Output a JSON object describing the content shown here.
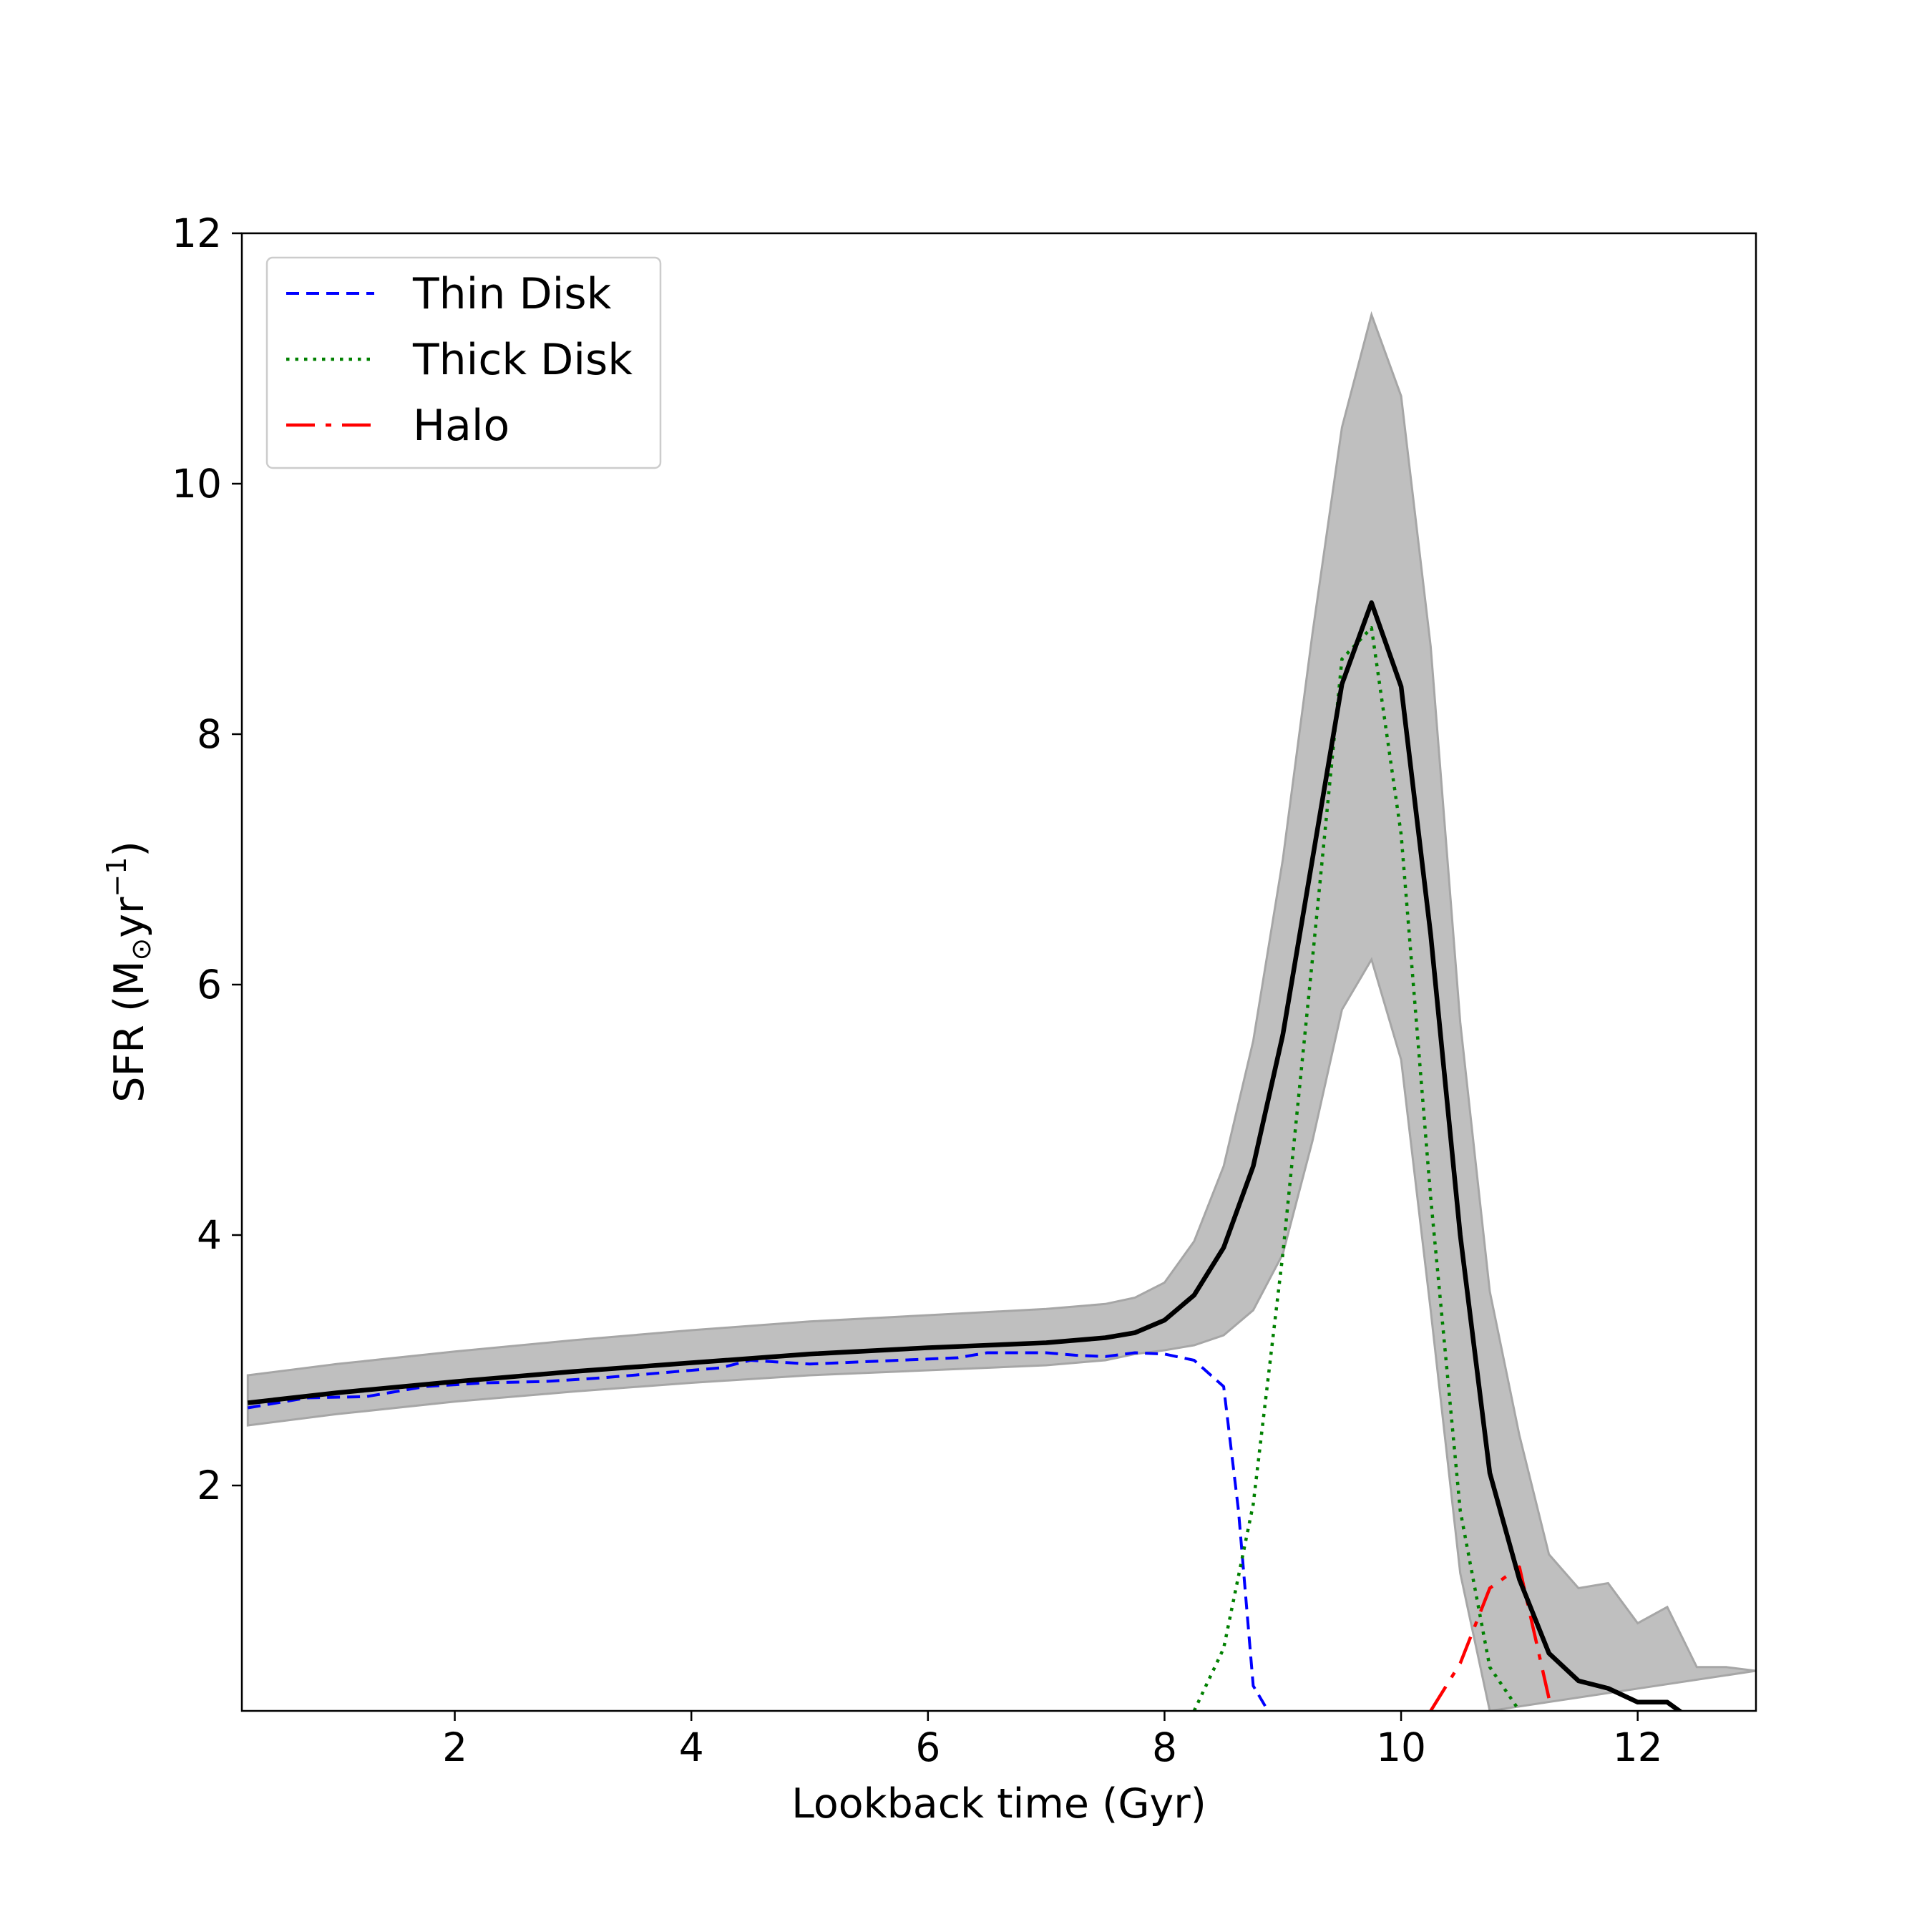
{
  "chart_data": {
    "type": "line",
    "title": "",
    "xlabel": "Lookback time (Gyr)",
    "ylabel": "SFR (M⊙yr⁻¹)",
    "ylabel_parts": {
      "main": "SFR (M",
      "sub": "⊙",
      "mid": "yr",
      "sup": "−1",
      "end": ")"
    },
    "xlim": [
      0.2,
      13.0
    ],
    "ylim": [
      0.2,
      12.0
    ],
    "xticks": [
      2,
      4,
      6,
      8,
      10,
      12
    ],
    "yticks": [
      2,
      4,
      6,
      8,
      10,
      12
    ],
    "grid": false,
    "legend_position": "top-left",
    "band": {
      "color": "#bfbfbf",
      "edge_color": "#a6a6a6",
      "upper": [
        [
          0.25,
          2.88
        ],
        [
          1.0,
          2.97
        ],
        [
          2.0,
          3.07
        ],
        [
          3.0,
          3.16
        ],
        [
          4.0,
          3.24
        ],
        [
          5.0,
          3.31
        ],
        [
          6.0,
          3.36
        ],
        [
          7.0,
          3.41
        ],
        [
          7.5,
          3.45
        ],
        [
          7.75,
          3.5
        ],
        [
          8.0,
          3.62
        ],
        [
          8.25,
          3.95
        ],
        [
          8.5,
          4.55
        ],
        [
          8.75,
          5.55
        ],
        [
          9.0,
          7.0
        ],
        [
          9.25,
          8.8
        ],
        [
          9.5,
          10.45
        ],
        [
          9.75,
          11.35
        ],
        [
          10.0,
          10.7
        ],
        [
          10.25,
          8.7
        ],
        [
          10.5,
          5.7
        ],
        [
          10.75,
          3.55
        ],
        [
          11.0,
          2.4
        ],
        [
          11.25,
          1.45
        ],
        [
          11.5,
          1.18
        ],
        [
          11.75,
          1.22
        ],
        [
          12.0,
          0.9
        ],
        [
          12.25,
          1.03
        ],
        [
          12.5,
          0.55
        ],
        [
          12.75,
          0.55
        ],
        [
          13.0,
          0.52
        ]
      ],
      "lower": [
        [
          0.25,
          2.48
        ],
        [
          1.0,
          2.57
        ],
        [
          2.0,
          2.67
        ],
        [
          3.0,
          2.75
        ],
        [
          4.0,
          2.82
        ],
        [
          5.0,
          2.88
        ],
        [
          6.0,
          2.92
        ],
        [
          7.0,
          2.96
        ],
        [
          7.5,
          3.0
        ],
        [
          7.75,
          3.05
        ],
        [
          8.0,
          3.08
        ],
        [
          8.25,
          3.12
        ],
        [
          8.5,
          3.2
        ],
        [
          8.75,
          3.4
        ],
        [
          9.0,
          3.85
        ],
        [
          9.25,
          4.75
        ],
        [
          9.5,
          5.8
        ],
        [
          9.75,
          6.2
        ],
        [
          10.0,
          5.4
        ],
        [
          10.25,
          3.4
        ],
        [
          10.5,
          1.3
        ],
        [
          10.75,
          0.2
        ]
      ]
    },
    "series": [
      {
        "name": "",
        "role": "total",
        "color": "#000000",
        "dash": "solid",
        "width": 6.5,
        "points": [
          [
            0.25,
            2.66
          ],
          [
            1.0,
            2.74
          ],
          [
            2.0,
            2.83
          ],
          [
            3.0,
            2.91
          ],
          [
            4.0,
            2.98
          ],
          [
            5.0,
            3.05
          ],
          [
            6.0,
            3.1
          ],
          [
            7.0,
            3.14
          ],
          [
            7.5,
            3.18
          ],
          [
            7.75,
            3.22
          ],
          [
            8.0,
            3.32
          ],
          [
            8.25,
            3.52
          ],
          [
            8.5,
            3.9
          ],
          [
            8.75,
            4.55
          ],
          [
            9.0,
            5.6
          ],
          [
            9.25,
            7.0
          ],
          [
            9.5,
            8.4
          ],
          [
            9.75,
            9.05
          ],
          [
            10.0,
            8.38
          ],
          [
            10.25,
            6.4
          ],
          [
            10.5,
            4.0
          ],
          [
            10.75,
            2.1
          ],
          [
            11.0,
            1.25
          ],
          [
            11.25,
            0.66
          ],
          [
            11.5,
            0.44
          ],
          [
            11.75,
            0.38
          ],
          [
            12.0,
            0.27
          ],
          [
            12.25,
            0.27
          ],
          [
            12.5,
            0.1
          ]
        ]
      },
      {
        "name": "Thin Disk",
        "role": "component",
        "color": "#0000ff",
        "dash": "18,10",
        "width": 4,
        "points": [
          [
            0.25,
            2.62
          ],
          [
            0.75,
            2.7
          ],
          [
            1.25,
            2.71
          ],
          [
            1.75,
            2.79
          ],
          [
            2.25,
            2.82
          ],
          [
            2.75,
            2.83
          ],
          [
            3.25,
            2.86
          ],
          [
            3.75,
            2.9
          ],
          [
            4.25,
            2.94
          ],
          [
            4.5,
            3.0
          ],
          [
            5.0,
            2.97
          ],
          [
            5.5,
            2.99
          ],
          [
            6.0,
            3.01
          ],
          [
            6.25,
            3.02
          ],
          [
            6.5,
            3.06
          ],
          [
            7.0,
            3.06
          ],
          [
            7.25,
            3.04
          ],
          [
            7.5,
            3.03
          ],
          [
            7.75,
            3.06
          ],
          [
            8.0,
            3.05
          ],
          [
            8.25,
            3.0
          ],
          [
            8.5,
            2.79
          ],
          [
            8.625,
            1.8
          ],
          [
            8.75,
            0.4
          ],
          [
            8.875,
            0.2
          ]
        ]
      },
      {
        "name": "Thick Disk",
        "role": "component",
        "color": "#008000",
        "dash": "4.5,8",
        "width": 4.5,
        "points": [
          [
            8.25,
            0.2
          ],
          [
            8.5,
            0.7
          ],
          [
            8.75,
            1.85
          ],
          [
            9.0,
            3.85
          ],
          [
            9.25,
            6.2
          ],
          [
            9.5,
            8.6
          ],
          [
            9.75,
            8.85
          ],
          [
            10.0,
            7.2
          ],
          [
            10.25,
            4.3
          ],
          [
            10.5,
            1.8
          ],
          [
            10.75,
            0.55
          ],
          [
            11.0,
            0.2
          ]
        ]
      },
      {
        "name": "Halo",
        "role": "component",
        "color": "#ff0000",
        "dash": "40,15,8,15",
        "width": 4.5,
        "points": [
          [
            10.25,
            0.2
          ],
          [
            10.5,
            0.58
          ],
          [
            10.75,
            1.18
          ],
          [
            11.0,
            1.35
          ],
          [
            11.25,
            0.3
          ]
        ]
      }
    ]
  }
}
